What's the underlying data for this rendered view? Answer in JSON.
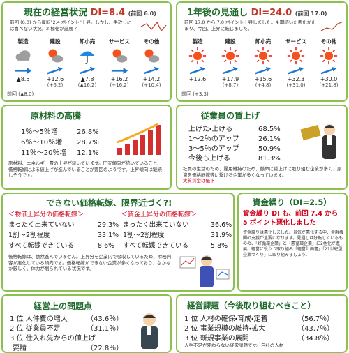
{
  "current": {
    "title": "現在の経営状況",
    "di": "DI=8.4",
    "prev": "(前回 6.0)",
    "note": "前回 (6.0) から反転\"2.4 ポイント\"上昇。しかし、手放しには喜べない状況。2 極化が進展？",
    "prev_label": "前回",
    "sectors": [
      {
        "name": "製造",
        "value": "▲8.5",
        "prev": "(▲8.0)"
      },
      {
        "name": "建設",
        "value": "+12.6",
        "prev": "(+6.2)"
      },
      {
        "name": "卸小売",
        "value": "▲7.8",
        "prev": "(▲16.2)"
      },
      {
        "name": "サービス",
        "value": "+16.2",
        "prev": "(+16.2)"
      },
      {
        "name": "その他",
        "value": "+14.2",
        "prev": "(+10.4)"
      }
    ]
  },
  "outlook": {
    "title": "1年後の見通し",
    "di": "DI=24.0",
    "prev": "(前回 17.0)",
    "note": "前回 17.0 から 7.0 ポイント上昇しました。4 期続いた悪化が止まり、今回、上昇に転じました。",
    "prev_label": "前回",
    "sectors": [
      {
        "name": "製造",
        "value": "+12.6",
        "prev": "(+3.3)"
      },
      {
        "name": "建設",
        "value": "+17.9",
        "prev": "(+8.7)"
      },
      {
        "name": "卸小売",
        "value": "+15.6",
        "prev": "(+4.8)"
      },
      {
        "name": "サービス",
        "value": "+32.3",
        "prev": "(+31.0)"
      },
      {
        "name": "その他",
        "value": "+30.0",
        "prev": "(+21.8)"
      }
    ]
  },
  "materials": {
    "title": "原材料の高騰",
    "rows": [
      [
        "1％～5％増",
        "26.8%"
      ],
      [
        "6％～10％増",
        "28.7%"
      ],
      [
        "11％～20％増",
        "12.1%"
      ]
    ],
    "note": "原材料、エネルギー費の上昇が続いています。円安傾向が続いていること、価格転嫁による値上げが進んでいることが要因のようです。上昇傾向は継続しそうです。"
  },
  "wages": {
    "title": "従業員の賃上げ",
    "rows": [
      [
        "上げた・上げる",
        "68.5%"
      ],
      [
        "1～2％のアップ",
        "26.1%"
      ],
      [
        "3～5％のアップ",
        "50.9%"
      ],
      [
        "今後も上げる",
        "81.3%"
      ]
    ],
    "note": "社員の生活のため、雇用維持のため、懸命に賃上げに取り組む企業が多く、原資を価格転嫁等に繋げる企業が多くなっています。",
    "note_red": "実質賃金は低下"
  },
  "pass_through": {
    "title": "できない価格転嫁、限界近づく?!",
    "headers": [
      "＜物価上昇分の価格転嫁＞",
      "＜賃金上昇分の価格転嫁＞"
    ],
    "rows": [
      [
        "まったく出来ていない",
        "29.3%",
        "まったく出来ていない",
        "36.6%"
      ],
      [
        "1割～2割程度",
        "33.1%",
        "1割～2割程度",
        "31.9%"
      ],
      [
        "すべて転嫁できている",
        "8.6%",
        "すべて転嫁できている",
        "5.8%"
      ]
    ],
    "note": "価格転嫁は、依然進んでいません。上昇分を企業内で吸収しているため、財務内容が悪化している傾向です。価格転嫁ができない企業が多くなっており、なかなか厳しく、体力が削られている状況です。"
  },
  "cash": {
    "title": "資金繰り（DI=2.5）",
    "highlight": "資金繰り DI も、前回 7.4 から 5 ポイント悪化しました",
    "note": "資金繰りは悪化しました。景気が悪化する中、金融機関の支援が重要になります。見通しは好転しているものの、「好循環企業」と「悪循環企業」に2極化が進展。経営に役立つ取り組み「経営計画書」「21世紀型企業づくり」に取り組みましょう。"
  },
  "problems": {
    "title": "経営上の問題点",
    "rows": [
      [
        "1 位 人件費の増大",
        "（43.6％）"
      ],
      [
        "2 位 従業員不足",
        "（31.1％）"
      ],
      [
        "3 位 仕入れ先からの値上げ",
        "（22.8％）"
      ]
    ],
    "tail": "要請"
  },
  "tasks": {
    "title": "経営課題（今後取り組むべきこと）",
    "rows": [
      [
        "1 位 人材の確保・育成・定着",
        "（56.7％）"
      ],
      [
        "2 位 事業規模の維持・拡大",
        "（43.7％）"
      ],
      [
        "3 位 新規事業の展開",
        "（34.8％）"
      ]
    ],
    "note": "人手不足が変わらない経営課題です。自社の人材"
  }
}
